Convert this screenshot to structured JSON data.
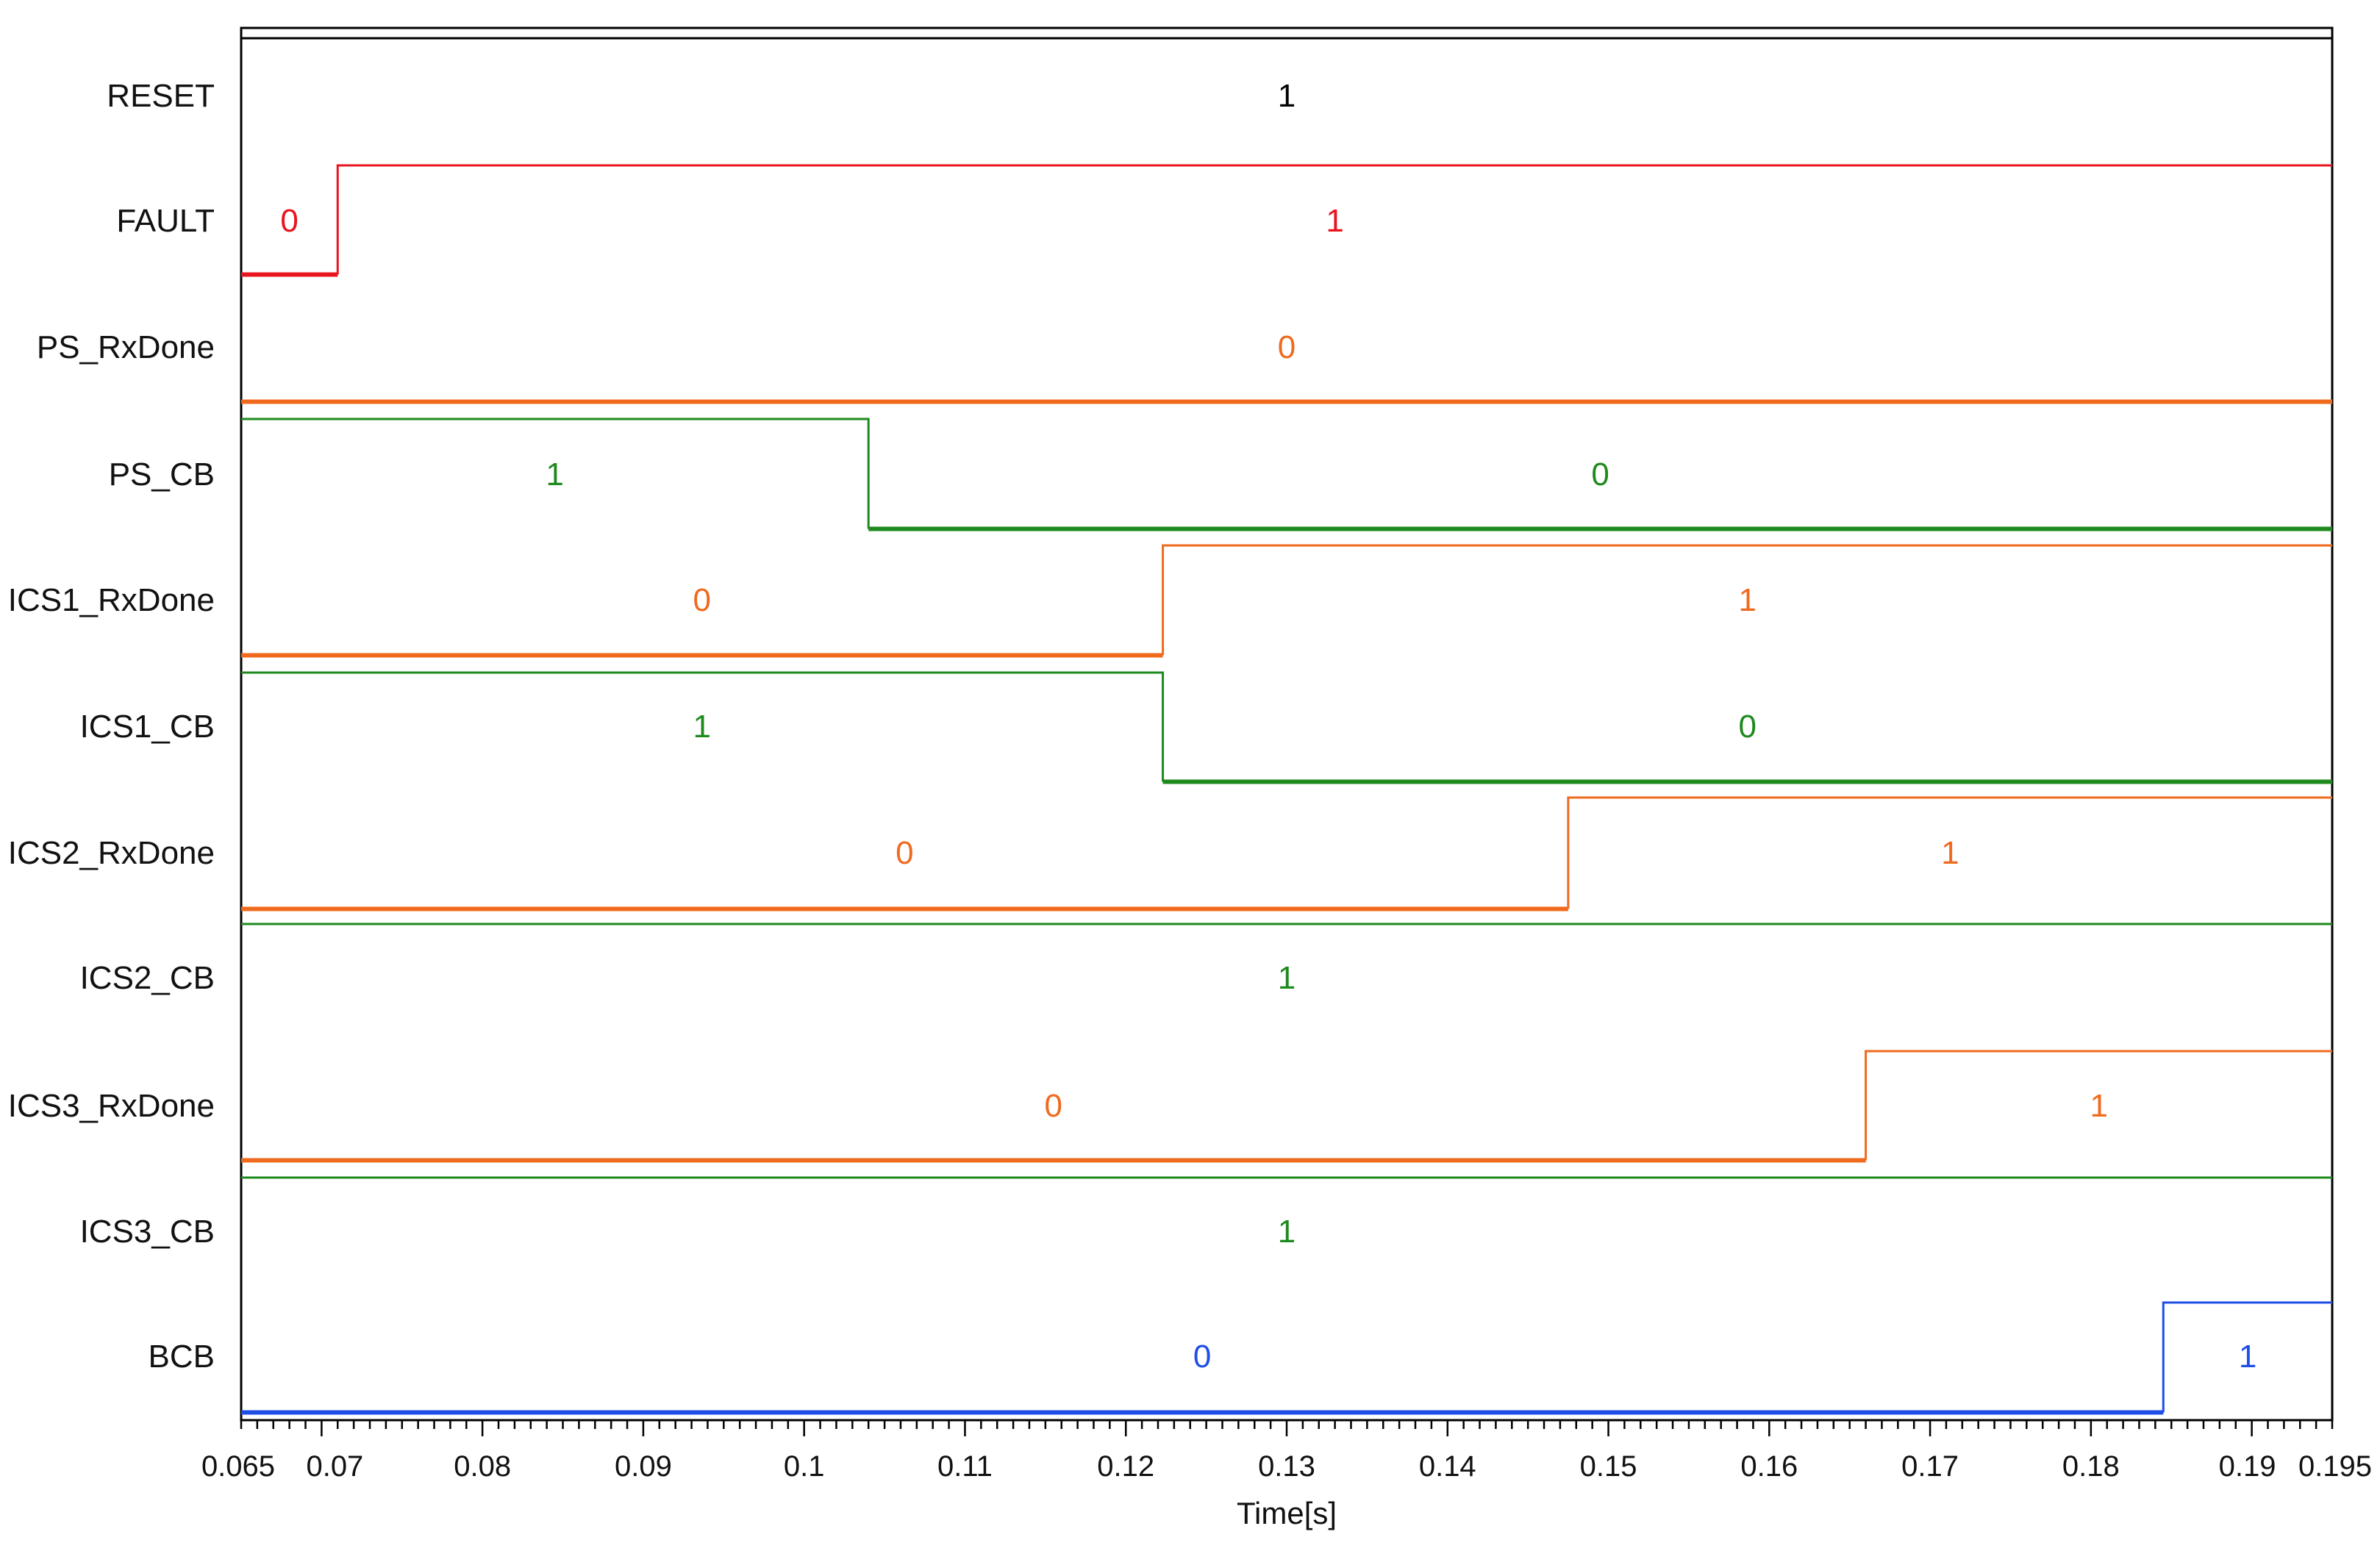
{
  "chart_data": {
    "type": "line",
    "subtype": "digital-timing",
    "xlabel": "Time[s]",
    "xlim": [
      0.065,
      0.195
    ],
    "x_ticks": [
      0.065,
      0.07,
      0.08,
      0.09,
      0.1,
      0.11,
      0.12,
      0.13,
      0.14,
      0.15,
      0.16,
      0.17,
      0.18,
      0.19,
      0.195
    ],
    "x_tick_labels": [
      "0.065",
      "0.07",
      "0.08",
      "0.09",
      "0.1",
      "0.11",
      "0.12",
      "0.13",
      "0.14",
      "0.15",
      "0.16",
      "0.17",
      "0.18",
      "0.19",
      "0.195"
    ],
    "grid": false,
    "legend": "none",
    "series": [
      {
        "name": "RESET",
        "color": "#000000",
        "x": [
          0.065
        ],
        "values": [
          1
        ]
      },
      {
        "name": "FAULT",
        "color": "#e8141e",
        "x": [
          0.065,
          0.071
        ],
        "values": [
          0,
          1
        ]
      },
      {
        "name": "PS_RxDone",
        "color": "#f06a1e",
        "x": [
          0.065
        ],
        "values": [
          0
        ]
      },
      {
        "name": "PS_CB",
        "color": "#1e8a1e",
        "x": [
          0.065,
          0.104
        ],
        "values": [
          1,
          0
        ]
      },
      {
        "name": "ICS1_RxDone",
        "color": "#f06a1e",
        "x": [
          0.065,
          0.1223
        ],
        "values": [
          0,
          1
        ]
      },
      {
        "name": "ICS1_CB",
        "color": "#1e8a1e",
        "x": [
          0.065,
          0.1223
        ],
        "values": [
          1,
          0
        ]
      },
      {
        "name": "ICS2_RxDone",
        "color": "#f06a1e",
        "x": [
          0.065,
          0.1475
        ],
        "values": [
          0,
          1
        ]
      },
      {
        "name": "ICS2_CB",
        "color": "#1e8a1e",
        "x": [
          0.065
        ],
        "values": [
          1
        ]
      },
      {
        "name": "ICS3_RxDone",
        "color": "#f06a1e",
        "x": [
          0.065,
          0.166
        ],
        "values": [
          0,
          1
        ]
      },
      {
        "name": "ICS3_CB",
        "color": "#1e8a1e",
        "x": [
          0.065
        ],
        "values": [
          1
        ]
      },
      {
        "name": "BCB",
        "color": "#1e4ee6",
        "x": [
          0.065,
          0.1845
        ],
        "values": [
          0,
          1
        ]
      }
    ]
  }
}
